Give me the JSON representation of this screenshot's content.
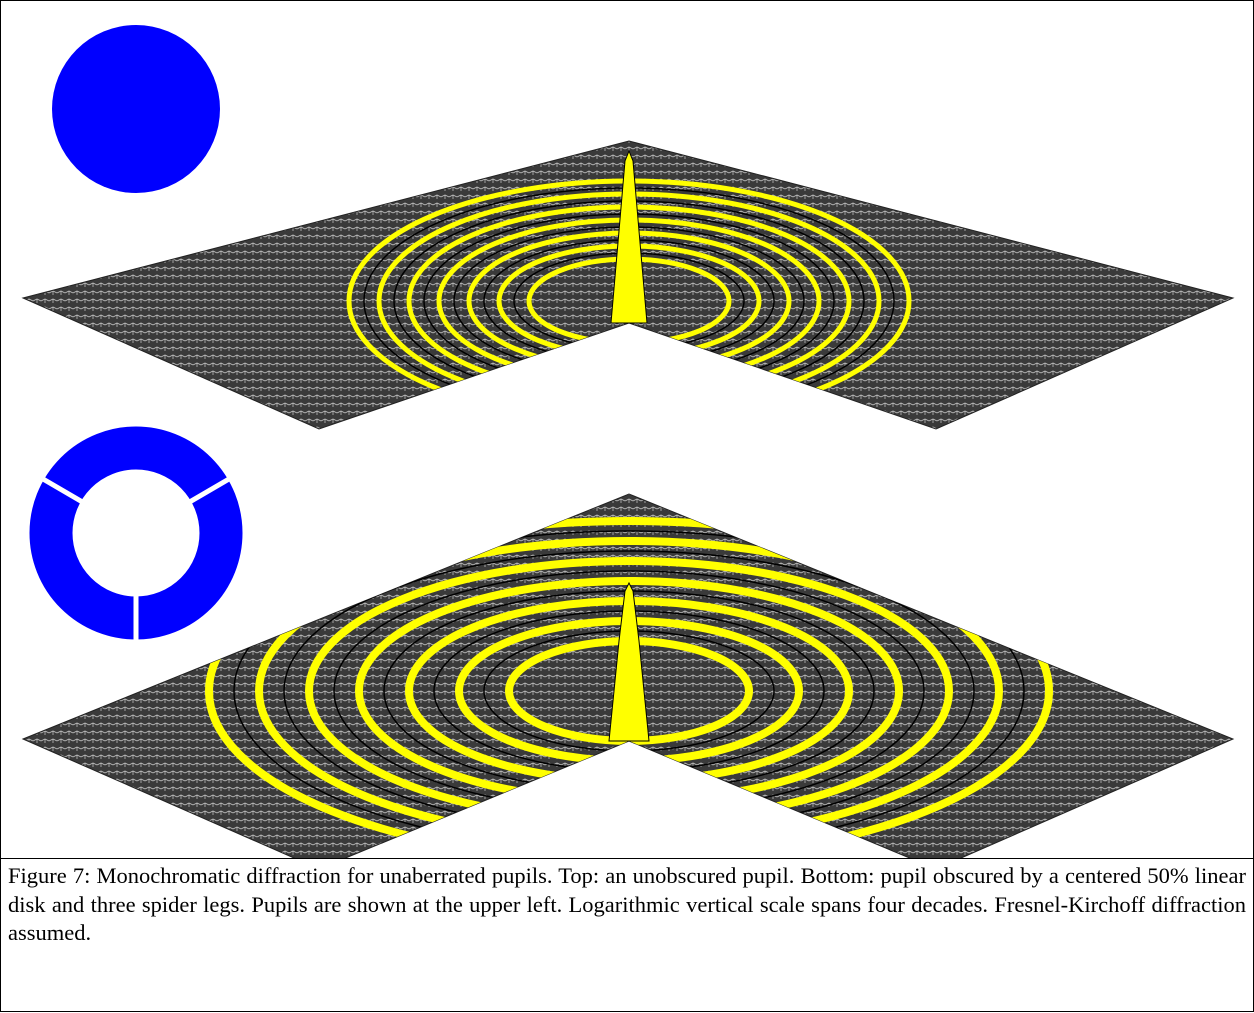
{
  "caption": "Figure 7: Monochromatic diffraction for unaberrated pupils. Top: an unobscured pupil. Bottom:  pupil obscured by a centered 50% linear disk and three spider legs. Pupils are shown at the upper left. Logarithmic vertical scale spans four decades.  Fresnel-Kirchoff diffraction assumed."
}
